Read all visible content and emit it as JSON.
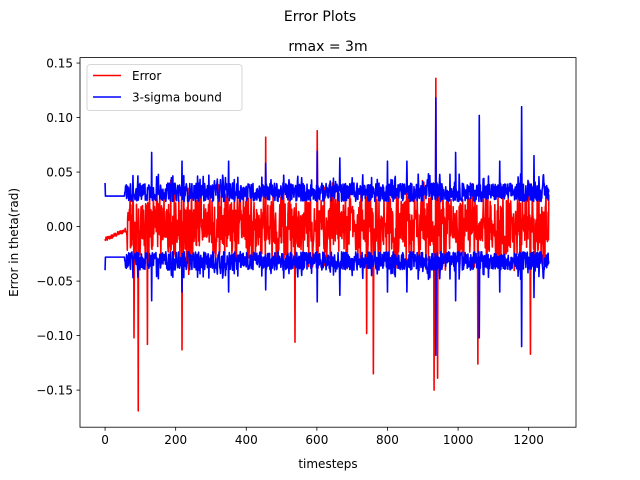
{
  "suptitle": "Error Plots",
  "chart_data": {
    "type": "line",
    "title": "rmax = 3m",
    "xlabel": "timesteps",
    "ylabel": "Error in theta(rad)",
    "xlim": [
      -71,
      1334
    ],
    "ylim": [
      -0.184,
      0.155
    ],
    "xticks": [
      0,
      200,
      400,
      600,
      800,
      1000,
      1200
    ],
    "yticks": [
      -0.15,
      -0.1,
      -0.05,
      0.0,
      0.05,
      0.1,
      0.15
    ],
    "ytick_labels": [
      "−0.15",
      "−0.10",
      "−0.05",
      "0.00",
      "0.05",
      "0.10",
      "0.15"
    ],
    "grid": false,
    "legend_position": "top-left",
    "n_points": 1258,
    "series": [
      {
        "name": "Error",
        "color": "#ff0000",
        "kind": "error",
        "quiet_segment": {
          "x": [
            0,
            60
          ],
          "y_range": [
            -0.012,
            -0.003
          ]
        },
        "noise_amplitude": 0.035,
        "spikes": [
          {
            "x": 82,
            "y": -0.102
          },
          {
            "x": 94,
            "y": -0.169
          },
          {
            "x": 120,
            "y": -0.108
          },
          {
            "x": 218,
            "y": -0.113
          },
          {
            "x": 455,
            "y": 0.082
          },
          {
            "x": 538,
            "y": -0.106
          },
          {
            "x": 601,
            "y": 0.088
          },
          {
            "x": 741,
            "y": -0.098
          },
          {
            "x": 760,
            "y": -0.135
          },
          {
            "x": 937,
            "y": 0.136
          },
          {
            "x": 932,
            "y": -0.15
          },
          {
            "x": 942,
            "y": -0.139
          },
          {
            "x": 1056,
            "y": -0.126
          },
          {
            "x": 1205,
            "y": -0.117
          }
        ]
      },
      {
        "name": "3-sigma bound",
        "color": "#0000ff",
        "kind": "bound",
        "initial": {
          "x": [
            0,
            55
          ],
          "value": 0.028,
          "start_value": 0.04
        },
        "base_band": [
          0.023,
          0.04
        ],
        "spikes": [
          {
            "x": 132,
            "y": 0.068
          },
          {
            "x": 218,
            "y": 0.06
          },
          {
            "x": 350,
            "y": 0.06
          },
          {
            "x": 455,
            "y": 0.058
          },
          {
            "x": 601,
            "y": 0.069
          },
          {
            "x": 665,
            "y": 0.063
          },
          {
            "x": 800,
            "y": 0.06
          },
          {
            "x": 855,
            "y": 0.06
          },
          {
            "x": 937,
            "y": 0.118
          },
          {
            "x": 993,
            "y": 0.068
          },
          {
            "x": 1060,
            "y": 0.102
          },
          {
            "x": 1118,
            "y": 0.06
          },
          {
            "x": 1180,
            "y": 0.11
          },
          {
            "x": 1215,
            "y": 0.065
          }
        ]
      }
    ]
  }
}
